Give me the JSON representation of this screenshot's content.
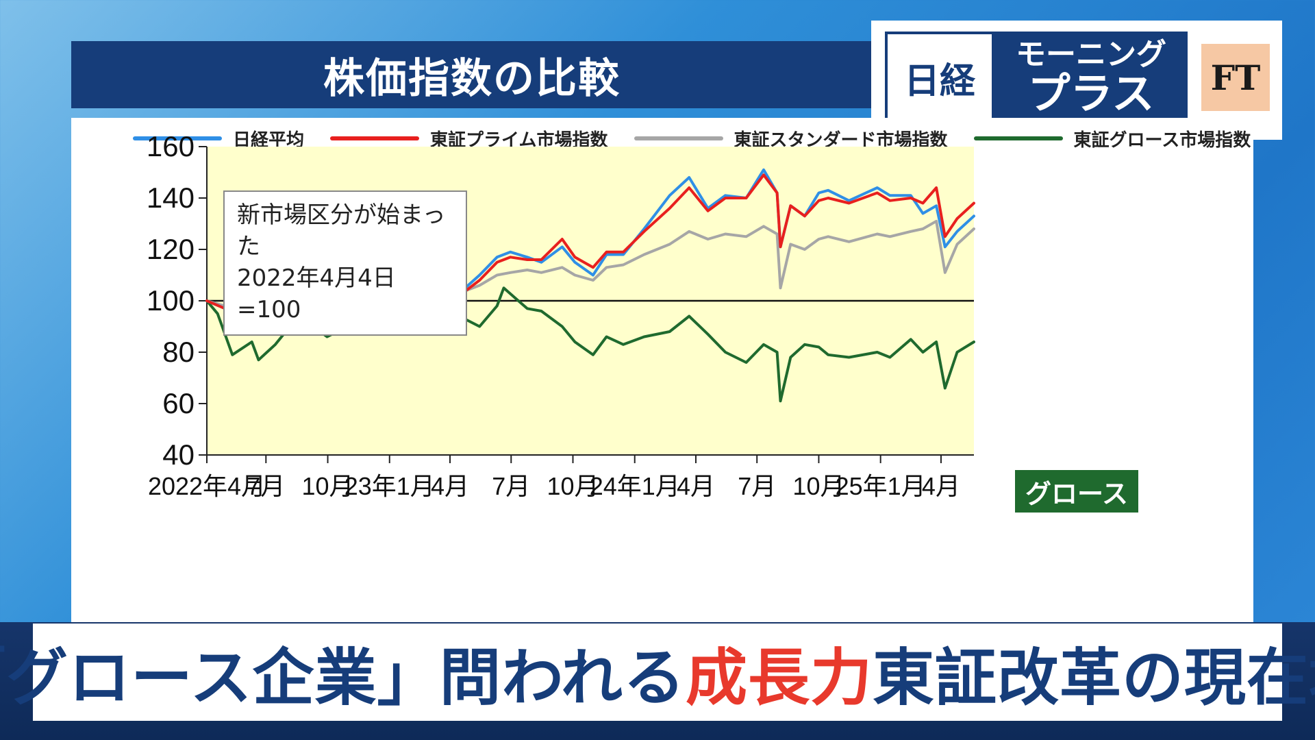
{
  "panel_title": "株価指数の比較",
  "logo": {
    "nikkei": "日経",
    "show_line1": "モーニング",
    "show_line2": "プラス",
    "ft": "FT"
  },
  "note": {
    "line1": "新市場区分が始まった",
    "line2": "2022年4月4日=100"
  },
  "growth_tag": "グロース",
  "headline": {
    "part1": "「グロース企業」問われる",
    "part2": "成長力",
    "part3": "東証改革の現在地"
  },
  "colors": {
    "nikkei": "#2f8fe6",
    "prime": "#e8201e",
    "standard": "#a6a6a6",
    "growth": "#1f6a2e",
    "plot_bg": "#ffffcc"
  },
  "chart_data": {
    "type": "line",
    "title": "株価指数の比較",
    "ylim": [
      40,
      160
    ],
    "yticks": [
      40,
      60,
      80,
      100,
      120,
      140,
      160
    ],
    "reference_line": 100,
    "x_start": "2022-04-04",
    "x_end": "2025-05-20",
    "x_ticks": [
      {
        "date": "2022-04-01",
        "label": "2022年4月"
      },
      {
        "date": "2022-07-01",
        "label": "7月"
      },
      {
        "date": "2022-10-01",
        "label": "10月"
      },
      {
        "date": "2023-01-01",
        "label": "23年1月"
      },
      {
        "date": "2023-04-01",
        "label": "4月"
      },
      {
        "date": "2023-07-01",
        "label": "7月"
      },
      {
        "date": "2023-10-01",
        "label": "10月"
      },
      {
        "date": "2024-01-01",
        "label": "24年1月"
      },
      {
        "date": "2024-04-01",
        "label": "4月"
      },
      {
        "date": "2024-07-01",
        "label": "7月"
      },
      {
        "date": "2024-10-01",
        "label": "10月"
      },
      {
        "date": "2025-01-01",
        "label": "25年1月"
      },
      {
        "date": "2025-04-01",
        "label": "4月"
      }
    ],
    "legend_position": "top",
    "series": [
      {
        "name": "日経平均",
        "color_key": "nikkei",
        "points": [
          [
            "2022-04-04",
            100
          ],
          [
            "2022-05-01",
            97
          ],
          [
            "2022-05-20",
            96
          ],
          [
            "2022-06-10",
            100
          ],
          [
            "2022-06-20",
            95
          ],
          [
            "2022-07-15",
            98
          ],
          [
            "2022-08-15",
            104
          ],
          [
            "2022-09-30",
            96
          ],
          [
            "2022-10-15",
            97
          ],
          [
            "2022-11-25",
            103
          ],
          [
            "2022-12-20",
            97
          ],
          [
            "2023-01-05",
            95
          ],
          [
            "2023-02-15",
            101
          ],
          [
            "2023-03-15",
            99
          ],
          [
            "2023-04-15",
            103
          ],
          [
            "2023-05-15",
            110
          ],
          [
            "2023-06-10",
            117
          ],
          [
            "2023-06-30",
            119
          ],
          [
            "2023-07-25",
            117
          ],
          [
            "2023-08-15",
            115
          ],
          [
            "2023-09-15",
            121
          ],
          [
            "2023-10-04",
            115
          ],
          [
            "2023-10-31",
            110
          ],
          [
            "2023-11-20",
            118
          ],
          [
            "2023-12-15",
            118
          ],
          [
            "2024-01-15",
            128
          ],
          [
            "2024-02-22",
            141
          ],
          [
            "2024-03-22",
            148
          ],
          [
            "2024-04-19",
            136
          ],
          [
            "2024-05-15",
            141
          ],
          [
            "2024-06-15",
            140
          ],
          [
            "2024-07-11",
            151
          ],
          [
            "2024-07-31",
            142
          ],
          [
            "2024-08-05",
            121
          ],
          [
            "2024-08-20",
            137
          ],
          [
            "2024-09-10",
            133
          ],
          [
            "2024-10-01",
            142
          ],
          [
            "2024-10-15",
            143
          ],
          [
            "2024-11-15",
            139
          ],
          [
            "2024-12-27",
            144
          ],
          [
            "2025-01-15",
            141
          ],
          [
            "2025-02-15",
            141
          ],
          [
            "2025-03-05",
            134
          ],
          [
            "2025-03-25",
            137
          ],
          [
            "2025-04-07",
            121
          ],
          [
            "2025-04-25",
            127
          ],
          [
            "2025-05-20",
            133
          ]
        ]
      },
      {
        "name": "東証プライム市場指数",
        "color_key": "prime",
        "points": [
          [
            "2022-04-04",
            100
          ],
          [
            "2022-05-01",
            97
          ],
          [
            "2022-05-20",
            95
          ],
          [
            "2022-06-10",
            99
          ],
          [
            "2022-06-20",
            94
          ],
          [
            "2022-07-15",
            97
          ],
          [
            "2022-08-15",
            102
          ],
          [
            "2022-09-30",
            95
          ],
          [
            "2022-10-15",
            96
          ],
          [
            "2022-11-25",
            102
          ],
          [
            "2022-12-20",
            97
          ],
          [
            "2023-01-05",
            95
          ],
          [
            "2023-02-15",
            101
          ],
          [
            "2023-03-15",
            98
          ],
          [
            "2023-04-15",
            102
          ],
          [
            "2023-05-15",
            108
          ],
          [
            "2023-06-10",
            115
          ],
          [
            "2023-06-30",
            117
          ],
          [
            "2023-07-25",
            116
          ],
          [
            "2023-08-15",
            116
          ],
          [
            "2023-09-15",
            124
          ],
          [
            "2023-10-04",
            117
          ],
          [
            "2023-10-31",
            113
          ],
          [
            "2023-11-20",
            119
          ],
          [
            "2023-12-15",
            119
          ],
          [
            "2024-01-15",
            127
          ],
          [
            "2024-02-22",
            136
          ],
          [
            "2024-03-22",
            144
          ],
          [
            "2024-04-19",
            135
          ],
          [
            "2024-05-15",
            140
          ],
          [
            "2024-06-15",
            140
          ],
          [
            "2024-07-11",
            149
          ],
          [
            "2024-07-31",
            142
          ],
          [
            "2024-08-05",
            121
          ],
          [
            "2024-08-20",
            137
          ],
          [
            "2024-09-10",
            133
          ],
          [
            "2024-10-01",
            139
          ],
          [
            "2024-10-15",
            140
          ],
          [
            "2024-11-15",
            138
          ],
          [
            "2024-12-27",
            142
          ],
          [
            "2025-01-15",
            139
          ],
          [
            "2025-02-15",
            140
          ],
          [
            "2025-03-05",
            138
          ],
          [
            "2025-03-25",
            144
          ],
          [
            "2025-04-07",
            125
          ],
          [
            "2025-04-25",
            132
          ],
          [
            "2025-05-20",
            138
          ]
        ]
      },
      {
        "name": "東証スタンダード市場指数",
        "color_key": "standard",
        "points": [
          [
            "2022-04-04",
            100
          ],
          [
            "2022-05-01",
            98
          ],
          [
            "2022-05-20",
            97
          ],
          [
            "2022-06-10",
            99
          ],
          [
            "2022-06-20",
            96
          ],
          [
            "2022-07-15",
            97
          ],
          [
            "2022-08-15",
            101
          ],
          [
            "2022-09-30",
            97
          ],
          [
            "2022-10-15",
            98
          ],
          [
            "2022-11-25",
            101
          ],
          [
            "2022-12-20",
            99
          ],
          [
            "2023-01-05",
            98
          ],
          [
            "2023-02-15",
            102
          ],
          [
            "2023-03-15",
            101
          ],
          [
            "2023-04-15",
            103
          ],
          [
            "2023-05-15",
            106
          ],
          [
            "2023-06-10",
            110
          ],
          [
            "2023-06-30",
            111
          ],
          [
            "2023-07-25",
            112
          ],
          [
            "2023-08-15",
            111
          ],
          [
            "2023-09-15",
            113
          ],
          [
            "2023-10-04",
            110
          ],
          [
            "2023-10-31",
            108
          ],
          [
            "2023-11-20",
            113
          ],
          [
            "2023-12-15",
            114
          ],
          [
            "2024-01-15",
            118
          ],
          [
            "2024-02-22",
            122
          ],
          [
            "2024-03-22",
            127
          ],
          [
            "2024-04-19",
            124
          ],
          [
            "2024-05-15",
            126
          ],
          [
            "2024-06-15",
            125
          ],
          [
            "2024-07-11",
            129
          ],
          [
            "2024-07-31",
            126
          ],
          [
            "2024-08-05",
            105
          ],
          [
            "2024-08-20",
            122
          ],
          [
            "2024-09-10",
            120
          ],
          [
            "2024-10-01",
            124
          ],
          [
            "2024-10-15",
            125
          ],
          [
            "2024-11-15",
            123
          ],
          [
            "2024-12-27",
            126
          ],
          [
            "2025-01-15",
            125
          ],
          [
            "2025-02-15",
            127
          ],
          [
            "2025-03-05",
            128
          ],
          [
            "2025-03-25",
            131
          ],
          [
            "2025-04-07",
            111
          ],
          [
            "2025-04-25",
            122
          ],
          [
            "2025-05-20",
            128
          ]
        ]
      },
      {
        "name": "東証グロース市場指数",
        "color_key": "growth",
        "points": [
          [
            "2022-04-04",
            100
          ],
          [
            "2022-04-20",
            95
          ],
          [
            "2022-05-12",
            79
          ],
          [
            "2022-06-10",
            84
          ],
          [
            "2022-06-20",
            77
          ],
          [
            "2022-07-15",
            83
          ],
          [
            "2022-08-15",
            93
          ],
          [
            "2022-09-05",
            91
          ],
          [
            "2022-09-30",
            86
          ],
          [
            "2022-10-15",
            88
          ],
          [
            "2022-11-25",
            97
          ],
          [
            "2022-12-20",
            92
          ],
          [
            "2023-01-05",
            87
          ],
          [
            "2023-02-15",
            95
          ],
          [
            "2023-03-15",
            92
          ],
          [
            "2023-04-15",
            94
          ],
          [
            "2023-05-15",
            90
          ],
          [
            "2023-06-10",
            98
          ],
          [
            "2023-06-20",
            105
          ],
          [
            "2023-07-25",
            97
          ],
          [
            "2023-08-15",
            96
          ],
          [
            "2023-09-15",
            90
          ],
          [
            "2023-10-04",
            84
          ],
          [
            "2023-10-31",
            79
          ],
          [
            "2023-11-20",
            86
          ],
          [
            "2023-12-15",
            83
          ],
          [
            "2024-01-15",
            86
          ],
          [
            "2024-02-22",
            88
          ],
          [
            "2024-03-22",
            94
          ],
          [
            "2024-04-19",
            87
          ],
          [
            "2024-05-15",
            80
          ],
          [
            "2024-06-15",
            76
          ],
          [
            "2024-07-11",
            83
          ],
          [
            "2024-07-31",
            80
          ],
          [
            "2024-08-05",
            61
          ],
          [
            "2024-08-20",
            78
          ],
          [
            "2024-09-10",
            83
          ],
          [
            "2024-10-01",
            82
          ],
          [
            "2024-10-15",
            79
          ],
          [
            "2024-11-15",
            78
          ],
          [
            "2024-12-27",
            80
          ],
          [
            "2025-01-15",
            78
          ],
          [
            "2025-02-15",
            85
          ],
          [
            "2025-03-05",
            80
          ],
          [
            "2025-03-25",
            84
          ],
          [
            "2025-04-07",
            66
          ],
          [
            "2025-04-25",
            80
          ],
          [
            "2025-05-20",
            84
          ]
        ]
      }
    ]
  }
}
